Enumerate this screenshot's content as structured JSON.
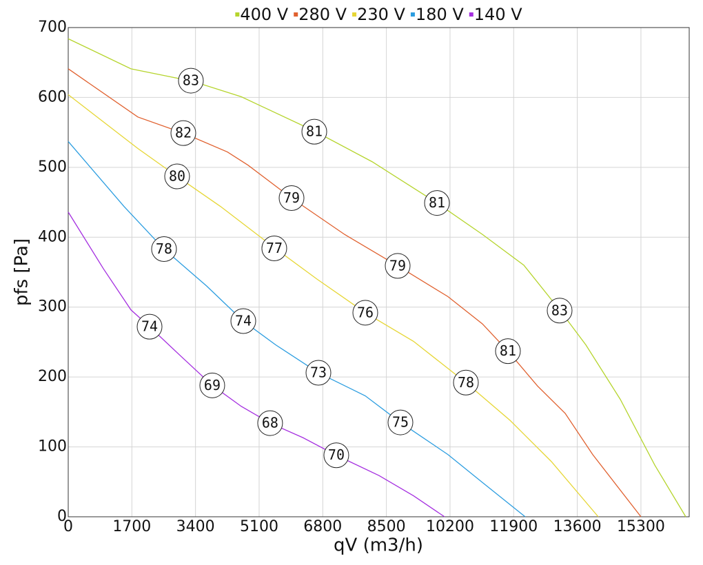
{
  "chart_data": {
    "type": "line",
    "x_label": "qV (m3/h)",
    "y_label": "pfs [Pa]",
    "xlim": [
      0,
      16590
    ],
    "ylim": [
      0,
      700
    ],
    "xticks": [
      0,
      1700,
      3400,
      5100,
      6800,
      8500,
      10200,
      11900,
      13600,
      15300
    ],
    "yticks": [
      0,
      100,
      200,
      300,
      400,
      500,
      600,
      700
    ],
    "grid": true,
    "legend": "top",
    "series": [
      {
        "name": "400 V",
        "color": "#b5d42c",
        "x": [
          0,
          1676,
          2596,
          3333,
          4622,
          6574,
          8120,
          9851,
          11066,
          12171,
          13128,
          13828,
          14749,
          15669,
          16498
        ],
        "values": [
          684,
          641,
          631,
          623,
          601,
          552,
          508,
          449,
          404,
          360,
          296,
          246,
          168,
          74,
          0
        ],
        "labels": [
          {
            "x": 3277,
            "y": 624,
            "text": 83
          },
          {
            "x": 6574,
            "y": 551,
            "text": 81
          },
          {
            "x": 9851,
            "y": 449,
            "text": 81
          },
          {
            "x": 13128,
            "y": 295,
            "text": 83
          }
        ]
      },
      {
        "name": "280 V",
        "color": "#e0602e",
        "x": [
          0,
          1860,
          3075,
          4253,
          4806,
          5966,
          7383,
          8801,
          10145,
          11066,
          11747,
          12539,
          13276,
          14012,
          15301
        ],
        "values": [
          641,
          572,
          549,
          522,
          503,
          456,
          404,
          359,
          315,
          276,
          237,
          187,
          148,
          89,
          0
        ],
        "labels": [
          {
            "x": 3075,
            "y": 549,
            "text": 82
          },
          {
            "x": 5966,
            "y": 456,
            "text": 79
          },
          {
            "x": 8801,
            "y": 359,
            "text": 79
          },
          {
            "x": 11747,
            "y": 237,
            "text": 81
          }
        ]
      },
      {
        "name": "230 V",
        "color": "#e6d634",
        "x": [
          0,
          1860,
          2909,
          4069,
          5505,
          6647,
          7936,
          9225,
          10624,
          11802,
          12907,
          14160
        ],
        "values": [
          604,
          527,
          487,
          444,
          385,
          340,
          292,
          251,
          192,
          138,
          79,
          0
        ],
        "labels": [
          {
            "x": 2909,
            "y": 487,
            "text": 80
          },
          {
            "x": 5505,
            "y": 384,
            "text": 77
          },
          {
            "x": 7936,
            "y": 292,
            "text": 76
          },
          {
            "x": 10624,
            "y": 192,
            "text": 78
          }
        ]
      },
      {
        "name": "180 V",
        "color": "#2b9de0",
        "x": [
          0,
          1491,
          2559,
          3701,
          4677,
          5542,
          6684,
          7936,
          8875,
          10145,
          11066,
          12208
        ],
        "values": [
          537,
          444,
          383,
          330,
          280,
          246,
          206,
          173,
          135,
          89,
          49,
          0
        ],
        "labels": [
          {
            "x": 2559,
            "y": 383,
            "text": 78
          },
          {
            "x": 4677,
            "y": 280,
            "text": 74
          },
          {
            "x": 6684,
            "y": 206,
            "text": 73
          },
          {
            "x": 8875,
            "y": 135,
            "text": 75
          }
        ]
      },
      {
        "name": "140 V",
        "color": "#a52fe0",
        "x": [
          0,
          939,
          1676,
          2173,
          2965,
          3848,
          4622,
          5394,
          6278,
          7162,
          8303,
          9225,
          10053
        ],
        "values": [
          436,
          355,
          296,
          272,
          232,
          188,
          158,
          134,
          113,
          88,
          59,
          30,
          0
        ],
        "labels": [
          {
            "x": 2173,
            "y": 272,
            "text": 74
          },
          {
            "x": 3848,
            "y": 188,
            "text": 69
          },
          {
            "x": 5394,
            "y": 134,
            "text": 68
          },
          {
            "x": 7162,
            "y": 88,
            "text": 70
          }
        ]
      }
    ]
  }
}
